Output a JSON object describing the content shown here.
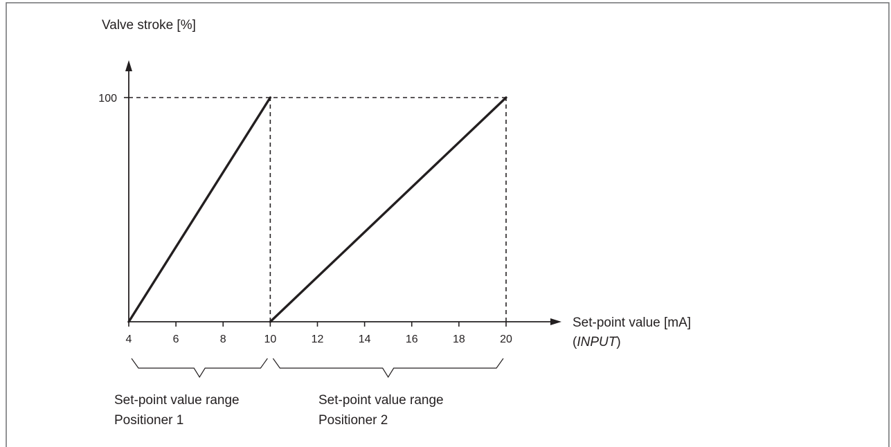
{
  "colors": {
    "ink": "#231f20",
    "frame": "#6d6e71",
    "background": "#ffffff"
  },
  "chart_data": {
    "type": "line",
    "ylabel": "Valve stroke [%]",
    "xlabel": "Set-point value [mA]",
    "xlabel_sub_prefix": "(",
    "xlabel_sub_italic": "INPUT",
    "xlabel_sub_suffix": ")",
    "xlim": [
      4,
      22
    ],
    "ylim": [
      0,
      100
    ],
    "x_ticks": [
      4,
      6,
      8,
      10,
      12,
      14,
      16,
      18,
      20
    ],
    "y_ticks": [
      100
    ],
    "grid": false,
    "series": [
      {
        "x": [
          4,
          10
        ],
        "y": [
          0,
          100
        ]
      },
      {
        "x": [
          10,
          20
        ],
        "y": [
          0,
          100
        ]
      }
    ],
    "reference_lines": [
      {
        "style": "dashed",
        "x": [
          4,
          20
        ],
        "y": [
          100,
          100
        ]
      },
      {
        "style": "dashed",
        "x": [
          10,
          10
        ],
        "y": [
          0,
          100
        ]
      },
      {
        "style": "dashed",
        "x": [
          20,
          20
        ],
        "y": [
          0,
          100
        ]
      }
    ],
    "ranges": [
      {
        "from": 4,
        "to": 10,
        "label_line1": "Set-point value range",
        "label_line2": "Positioner 1"
      },
      {
        "from": 10,
        "to": 20,
        "label_line1": "Set-point value range",
        "label_line2": "Positioner 2"
      }
    ]
  }
}
